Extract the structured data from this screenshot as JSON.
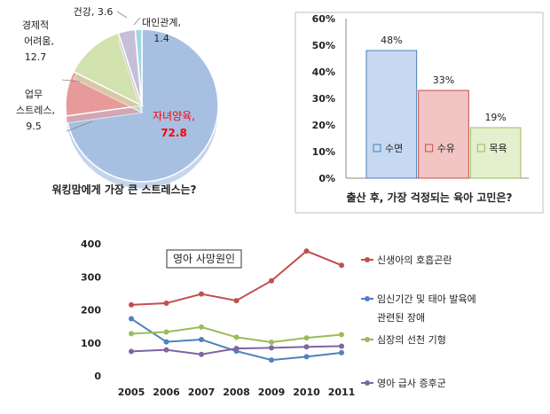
{
  "chart_data": [
    {
      "type": "pie",
      "title": "워킹맘에게 가장 큰 스트레스는?",
      "slices": [
        {
          "label": "자녀양육,",
          "value_text": "72.8",
          "value": 72.8,
          "color": "#a7c0e2"
        },
        {
          "label": "업무 스트레스,",
          "value_text": "9.5",
          "value": 9.5,
          "color": "#e69a99"
        },
        {
          "label": "경제적 어려움,",
          "value_text": "12.7",
          "value": 12.7,
          "color": "#d1e2ae"
        },
        {
          "label": "건강,",
          "value_text": "3.6",
          "value": 3.6,
          "color": "#c7bfd8"
        },
        {
          "label": "대인관계,",
          "value_text": "1.4",
          "value": 1.4,
          "color": "#9fd6e4"
        }
      ],
      "label_lines": {
        "child": [
          "자녀양육,",
          "72.8"
        ],
        "work": [
          "업무",
          "스트레스,",
          "9.5"
        ],
        "econ": [
          "경제적",
          "어려움,",
          "12.7"
        ],
        "health": "건강, 3.6",
        "social": [
          "대인관계,",
          "1.4"
        ]
      }
    },
    {
      "type": "bar",
      "title": "출산 후, 가장 걱정되는 육아 고민은?",
      "categories": [
        "수면",
        "수유",
        "목욕"
      ],
      "values": [
        48,
        33,
        19
      ],
      "value_labels": [
        "48%",
        "33%",
        "19%"
      ],
      "colors": [
        "#c6d9f1",
        "#f2c4c4",
        "#e3efcd"
      ],
      "border_colors": [
        "#4a7ebb",
        "#c0504d",
        "#9bbb59"
      ],
      "ylim": [
        0,
        60
      ],
      "yticks": [
        "0%",
        "10%",
        "20%",
        "30%",
        "40%",
        "50%",
        "60%"
      ],
      "legend": "inside-bars"
    },
    {
      "type": "line",
      "title": "영아 사망원인",
      "x": [
        2005,
        2006,
        2007,
        2008,
        2009,
        2010,
        2011
      ],
      "ylim": [
        0,
        400
      ],
      "yticks": [
        0,
        100,
        200,
        300,
        400
      ],
      "legend": "right",
      "series": [
        {
          "name": "신생아의 호흡곤란",
          "name_lines": [
            "신생아의 호흡곤란"
          ],
          "color": "#c0504d",
          "values": [
            215,
            220,
            248,
            228,
            288,
            378,
            335
          ]
        },
        {
          "name": "임신기간 및 태아 발육에 관련된 장애",
          "name_lines": [
            "임신기간 및 태아 발육에",
            "관련된 장애"
          ],
          "color": "#4f81bd",
          "values": [
            173,
            103,
            110,
            75,
            48,
            58,
            70
          ]
        },
        {
          "name": "심장의 선천 기형",
          "name_lines": [
            "심장의 선천 기형"
          ],
          "color": "#9bbb59",
          "values": [
            128,
            133,
            148,
            117,
            102,
            115,
            125
          ]
        },
        {
          "name": "영아 급사 증후군",
          "name_lines": [
            "영아 급사 증후군"
          ],
          "color": "#8064a2",
          "values": [
            74,
            79,
            65,
            83,
            85,
            88,
            90
          ]
        }
      ]
    }
  ]
}
